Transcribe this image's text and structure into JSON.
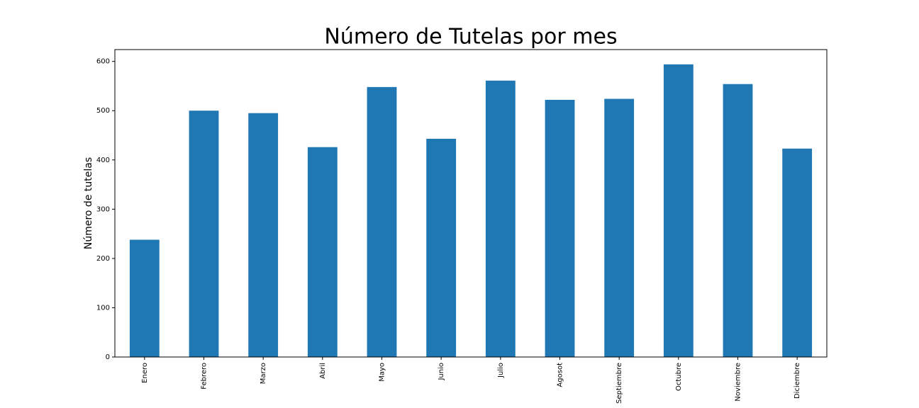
{
  "chart_data": {
    "type": "bar",
    "title": "Número de Tutelas por mes",
    "y_label": "Número de tutelas",
    "categories": [
      "Enero",
      "Febrero",
      "Marzo",
      "Abril",
      "Mayo",
      "Junio",
      "Julio",
      "Agosot",
      "Septiembre",
      "Octubre",
      "Noviembre",
      "Diciembre"
    ],
    "values": [
      238,
      500,
      495,
      426,
      548,
      443,
      561,
      522,
      524,
      594,
      554,
      423
    ],
    "color": "#1f77b4",
    "ylim": [
      0,
      624
    ],
    "yticks": [
      0,
      100,
      200,
      300,
      400,
      500,
      600
    ],
    "grid": false
  }
}
